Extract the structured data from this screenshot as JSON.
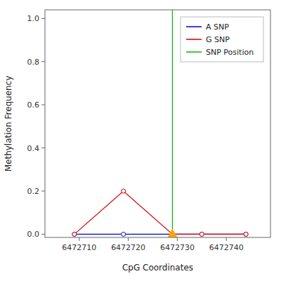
{
  "chart_data": {
    "type": "line",
    "xlabel": "CpG Coordinates",
    "ylabel": "Methylation Frequency",
    "series": [
      {
        "name": "A SNP",
        "type": "line",
        "color": "#0000CC",
        "marker": "circle",
        "x": [
          6472709,
          6472719,
          6472729,
          6472735,
          6472744
        ],
        "values": [
          0.0,
          0.0,
          0.0,
          0.0,
          0.0
        ]
      },
      {
        "name": "G SNP",
        "type": "line",
        "color": "#CC0000",
        "marker": "circle",
        "x": [
          6472709,
          6472719,
          6472729,
          6472735,
          6472744
        ],
        "values": [
          0.0,
          0.2,
          0.0,
          0.0,
          0.0
        ]
      },
      {
        "name": "SNP Position",
        "type": "vline",
        "color": "#00BB00",
        "x": [
          6472729
        ]
      },
      {
        "type": "scatter",
        "color": "#FFA500",
        "marker": "triangle",
        "x": [
          6472729
        ],
        "values": [
          0.0
        ]
      }
    ],
    "xlim": [
      6472703,
      6472749
    ],
    "ylim": [
      -0.015,
      1.04
    ],
    "xticks": [
      6472710,
      6472720,
      6472730,
      6472740
    ],
    "yticks": [
      {
        "value": 0.0,
        "label": "0.0"
      },
      0.2,
      0.4,
      0.6,
      0.8,
      {
        "value": 1.0,
        "label": "1.0"
      }
    ],
    "grid": false,
    "legend": "upper right"
  }
}
